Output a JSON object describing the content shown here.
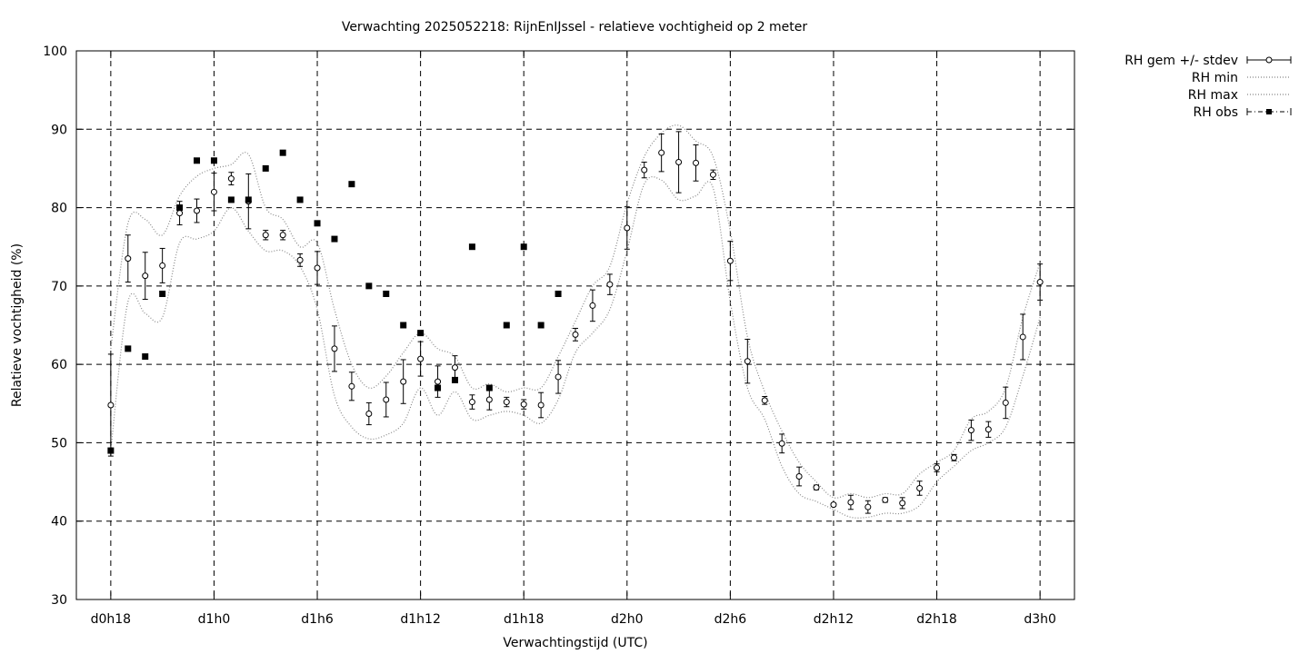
{
  "chart_data": {
    "type": "line",
    "title": "Verwachting 2025052218: RijnEnIJssel - relatieve vochtigheid op 2 meter",
    "xlabel": "Verwachtingstijd (UTC)",
    "ylabel": "Relatieve vochtigheid (%)",
    "ylim": [
      30,
      100
    ],
    "xlim_hours": [
      16,
      74
    ],
    "yticks": [
      "30",
      "40",
      "50",
      "60",
      "70",
      "80",
      "90",
      "100"
    ],
    "xticks": [
      {
        "label": "d0h18",
        "hour": 18
      },
      {
        "label": "d1h0",
        "hour": 24
      },
      {
        "label": "d1h6",
        "hour": 30
      },
      {
        "label": "d1h12",
        "hour": 36
      },
      {
        "label": "d1h18",
        "hour": 42
      },
      {
        "label": "d2h0",
        "hour": 48
      },
      {
        "label": "d2h6",
        "hour": 54
      },
      {
        "label": "d2h12",
        "hour": 60
      },
      {
        "label": "d2h18",
        "hour": 66
      },
      {
        "label": "d3h0",
        "hour": 72
      }
    ],
    "grid": true,
    "legend_position": "outside-top-right",
    "legend": [
      {
        "label": "RH gem +/- stdev",
        "style": "errorbar-circle"
      },
      {
        "label": "RH min",
        "style": "dotted"
      },
      {
        "label": "RH max",
        "style": "dotted"
      },
      {
        "label": "RH obs",
        "style": "square"
      }
    ],
    "series": [
      {
        "name": "RH gem +/- stdev",
        "x": [
          18,
          19,
          20,
          21,
          22,
          23,
          24,
          25,
          26,
          27,
          28,
          29,
          30,
          31,
          32,
          33,
          34,
          35,
          36,
          37,
          38,
          39,
          40,
          41,
          42,
          43,
          44,
          45,
          46,
          47,
          48,
          49,
          50,
          51,
          52,
          53,
          54,
          55,
          56,
          57,
          58,
          59,
          60,
          61,
          62,
          63,
          64,
          65,
          66,
          67,
          68,
          69,
          70,
          71,
          72
        ],
        "y": [
          54.8,
          73.5,
          71.3,
          72.6,
          79.3,
          79.6,
          82.0,
          83.7,
          80.8,
          76.5,
          76.5,
          73.3,
          72.3,
          62.0,
          57.2,
          53.7,
          55.5,
          57.8,
          60.7,
          57.8,
          59.6,
          55.2,
          55.5,
          55.2,
          54.9,
          54.8,
          58.4,
          63.8,
          67.5,
          70.2,
          77.4,
          84.8,
          87.0,
          85.8,
          85.7,
          84.2,
          73.2,
          60.4,
          55.4,
          49.9,
          45.7,
          44.3,
          42.1,
          42.4,
          41.8,
          42.7,
          42.3,
          44.2,
          46.8,
          48.1,
          51.6,
          51.7,
          55.1,
          63.5,
          70.5
        ],
        "stdev": [
          6.5,
          3.0,
          3.0,
          2.2,
          1.5,
          1.5,
          2.4,
          0.8,
          3.5,
          0.6,
          0.6,
          0.8,
          2.1,
          2.9,
          1.8,
          1.4,
          2.2,
          2.8,
          2.2,
          2.0,
          1.5,
          0.9,
          1.3,
          0.6,
          0.6,
          1.6,
          2.1,
          0.8,
          2.0,
          1.3,
          2.7,
          1.0,
          2.4,
          3.9,
          2.3,
          0.6,
          2.5,
          2.8,
          0.5,
          1.2,
          1.2,
          0.3,
          0.2,
          0.9,
          0.8,
          0.3,
          0.7,
          0.9,
          0.5,
          0.4,
          1.3,
          1.0,
          2.0,
          2.9,
          2.3
        ]
      },
      {
        "name": "RH min",
        "x": [
          18,
          19,
          20,
          21,
          22,
          23,
          24,
          25,
          26,
          27,
          28,
          29,
          30,
          31,
          32,
          33,
          34,
          35,
          36,
          37,
          38,
          39,
          40,
          41,
          42,
          43,
          44,
          45,
          46,
          47,
          48,
          49,
          50,
          51,
          52,
          53,
          54,
          55,
          56,
          57,
          58,
          59,
          60,
          61,
          62,
          63,
          64,
          65,
          66,
          67,
          68,
          69,
          70,
          71,
          72
        ],
        "y": [
          49.0,
          68.0,
          66.5,
          66.0,
          75.5,
          76.0,
          77.0,
          80.0,
          77.0,
          74.5,
          74.5,
          72.5,
          67.0,
          56.0,
          52.0,
          50.5,
          51.0,
          52.5,
          57.0,
          53.5,
          56.5,
          53.0,
          53.5,
          54.0,
          53.5,
          52.5,
          55.5,
          61.5,
          64.0,
          67.0,
          74.5,
          83.0,
          83.5,
          81.0,
          81.5,
          82.5,
          68.0,
          57.0,
          53.0,
          47.0,
          43.5,
          42.5,
          41.5,
          40.5,
          40.5,
          41.0,
          41.0,
          42.0,
          45.0,
          47.0,
          49.0,
          50.0,
          52.0,
          58.5,
          66.0
        ]
      },
      {
        "name": "RH max",
        "x": [
          18,
          19,
          20,
          21,
          22,
          23,
          24,
          25,
          26,
          27,
          28,
          29,
          30,
          31,
          32,
          33,
          34,
          35,
          36,
          37,
          38,
          39,
          40,
          41,
          42,
          43,
          44,
          45,
          46,
          47,
          48,
          49,
          50,
          51,
          52,
          53,
          54,
          55,
          56,
          57,
          58,
          59,
          60,
          61,
          62,
          63,
          64,
          65,
          66,
          67,
          68,
          69,
          70,
          71,
          72
        ],
        "y": [
          62.0,
          78.0,
          78.5,
          76.5,
          81.5,
          84.0,
          85.0,
          85.5,
          86.8,
          80.0,
          78.5,
          75.0,
          75.5,
          67.0,
          60.0,
          57.0,
          58.5,
          61.5,
          64.0,
          62.0,
          61.0,
          57.0,
          57.5,
          56.5,
          57.0,
          57.0,
          61.0,
          65.5,
          70.0,
          72.5,
          80.5,
          86.5,
          89.5,
          90.5,
          88.5,
          86.5,
          77.0,
          63.5,
          56.5,
          51.5,
          47.5,
          45.0,
          43.0,
          43.5,
          43.0,
          43.5,
          43.5,
          46.0,
          47.5,
          49.0,
          53.0,
          54.0,
          57.0,
          66.0,
          73.0
        ]
      },
      {
        "name": "RH obs",
        "x": [
          18,
          19,
          20,
          21,
          22,
          23,
          24,
          25,
          26,
          27,
          28,
          29,
          30,
          31,
          32,
          33,
          34,
          35,
          36,
          37,
          38,
          39,
          40,
          41,
          42,
          43,
          44
        ],
        "y": [
          49,
          62,
          61,
          69,
          80,
          86,
          86,
          81,
          81,
          85,
          87,
          81,
          78,
          76,
          83,
          70,
          69,
          65,
          64,
          57,
          58,
          75,
          57,
          65,
          75,
          65,
          69
        ]
      }
    ]
  }
}
